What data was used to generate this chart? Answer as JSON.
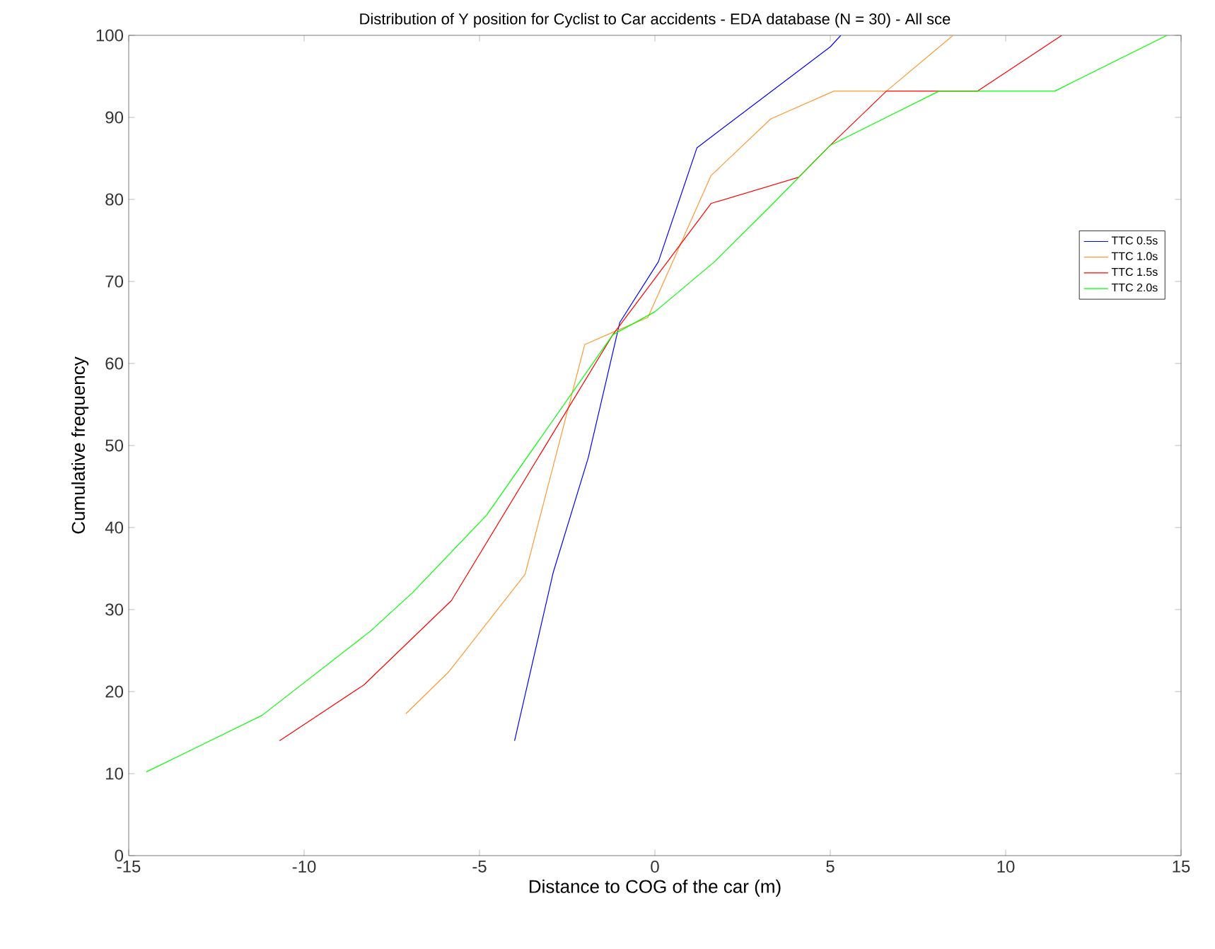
{
  "chart_data": {
    "type": "line",
    "title": "Distribution of Y position for Cyclist to Car accidents - EDA database (N = 30) - All sce",
    "xlabel": "Distance to COG of the car (m)",
    "ylabel": "Cumulative frequency",
    "xlim": [
      -15,
      15
    ],
    "ylim": [
      0,
      100
    ],
    "xticks": [
      -15,
      -10,
      -5,
      0,
      5,
      10,
      15
    ],
    "yticks": [
      0,
      10,
      20,
      30,
      40,
      50,
      60,
      70,
      80,
      90,
      100
    ],
    "grid": false,
    "legend": "right",
    "marker": "none",
    "line_style": "solid",
    "series": [
      {
        "name": "TTC 0.5s",
        "color": "#0000ff",
        "x": [
          -4,
          -2.9,
          -1.9,
          -1,
          0.1,
          1.2,
          5,
          5.3
        ],
        "values": [
          14,
          34.5,
          48.5,
          65,
          72.4,
          86.3,
          98.6,
          100
        ]
      },
      {
        "name": "TTC 1.0s",
        "color": "#ff9933",
        "x": [
          -7.1,
          -5.9,
          -5.4,
          -3.7,
          -2,
          -1.2,
          -0.2,
          1.6,
          3.3,
          5.1,
          6.6,
          8.5
        ],
        "values": [
          17.3,
          22.3,
          25,
          34.3,
          62.3,
          63.8,
          65.6,
          82.9,
          89.8,
          93.2,
          93.2,
          100
        ]
      },
      {
        "name": "TTC 1.5s",
        "color": "#ff0000",
        "x": [
          -10.7,
          -8.3,
          -5.8,
          -1.2,
          1.6,
          4.1,
          5,
          6.6,
          9.2,
          11.6
        ],
        "values": [
          14,
          20.8,
          31.1,
          63.5,
          79.5,
          82.7,
          86.6,
          93.2,
          93.2,
          100
        ]
      },
      {
        "name": "TTC 2.0s",
        "color": "#00ff00",
        "x": [
          -14.5,
          -11.2,
          -8.1,
          -6.9,
          -4.8,
          -1.2,
          0,
          1.7,
          3.3,
          5,
          8.1,
          11.4,
          14.6
        ],
        "values": [
          10.2,
          17.1,
          27.4,
          32.1,
          41.5,
          63.5,
          66.3,
          72.4,
          79.2,
          86.6,
          93.2,
          93.2,
          100
        ]
      }
    ]
  }
}
